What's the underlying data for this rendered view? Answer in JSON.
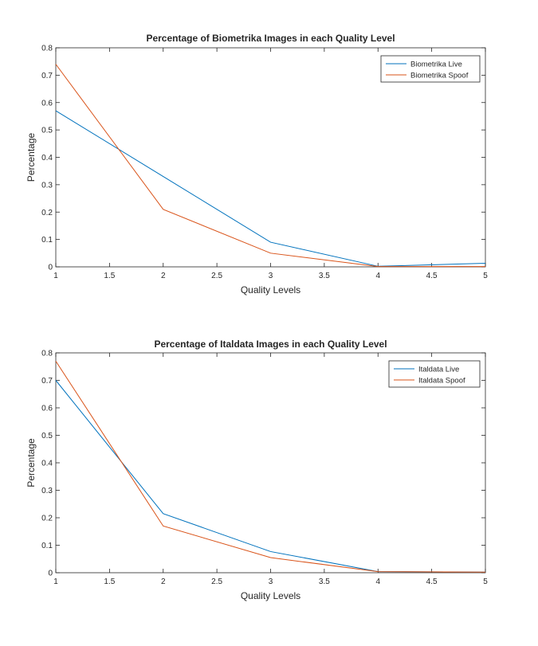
{
  "colors": {
    "live": "#0072BD",
    "spoof": "#D95319"
  },
  "chart_data": [
    {
      "type": "line",
      "title": "Percentage of Biometrika Images in each Quality Level",
      "xlabel": "Quality Levels",
      "ylabel": "Percentage",
      "x": [
        1,
        2,
        3,
        4,
        5
      ],
      "xlim": [
        1,
        5
      ],
      "ylim": [
        0,
        0.8
      ],
      "xticks": [
        "1",
        "1.5",
        "2",
        "2.5",
        "3",
        "3.5",
        "4",
        "4.5",
        "5"
      ],
      "yticks": [
        "0",
        "0.1",
        "0.2",
        "0.3",
        "0.4",
        "0.5",
        "0.6",
        "0.7",
        "0.8"
      ],
      "legend_position": "top-right",
      "series": [
        {
          "name": "Biometrika Live",
          "values": [
            0.57,
            0.33,
            0.09,
            0.002,
            0.013
          ]
        },
        {
          "name": "Biometrika Spoof",
          "values": [
            0.74,
            0.21,
            0.05,
            0.001,
            0.001
          ]
        }
      ]
    },
    {
      "type": "line",
      "title": "Percentage of Italdata Images in each Quality Level",
      "xlabel": "Quality Levels",
      "ylabel": "Percentage",
      "x": [
        1,
        2,
        3,
        4,
        5
      ],
      "xlim": [
        1,
        5
      ],
      "ylim": [
        0,
        0.8
      ],
      "xticks": [
        "1",
        "1.5",
        "2",
        "2.5",
        "3",
        "3.5",
        "4",
        "4.5",
        "5"
      ],
      "yticks": [
        "0",
        "0.1",
        "0.2",
        "0.3",
        "0.4",
        "0.5",
        "0.6",
        "0.7",
        "0.8"
      ],
      "legend_position": "top-right",
      "series": [
        {
          "name": "Italdata Live",
          "values": [
            0.7,
            0.215,
            0.077,
            0.004,
            0.002
          ]
        },
        {
          "name": "Italdata Spoof",
          "values": [
            0.77,
            0.17,
            0.055,
            0.004,
            0.002
          ]
        }
      ]
    }
  ]
}
